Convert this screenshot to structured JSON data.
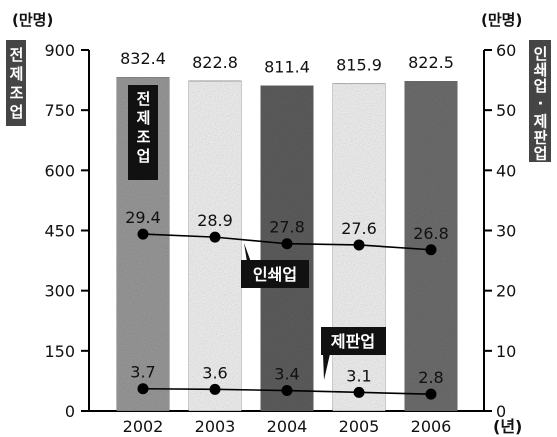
{
  "chart_data": {
    "type": "bar",
    "categories": [
      "2002",
      "2003",
      "2004",
      "2005",
      "2006"
    ],
    "x_unit": "(년)",
    "left_axis": {
      "unit": "(만명)",
      "label": "전제조업",
      "range": [
        0,
        900
      ],
      "ticks": [
        0,
        150,
        300,
        450,
        600,
        750,
        900
      ]
    },
    "right_axis": {
      "unit": "(만명)",
      "label": "인쇄업 · 제판업",
      "range": [
        0,
        60
      ],
      "ticks": [
        0,
        10,
        20,
        30,
        40,
        50,
        60
      ]
    },
    "series": [
      {
        "name": "전제조업",
        "kind": "bar",
        "axis": "left",
        "values": [
          832.4,
          822.8,
          811.4,
          815.9,
          822.5
        ],
        "labels": [
          "832.4",
          "822.8",
          "811.4",
          "815.9",
          "822.5"
        ]
      },
      {
        "name": "인쇄업",
        "kind": "line",
        "axis": "right",
        "values": [
          29.4,
          28.9,
          27.8,
          27.6,
          26.8
        ],
        "labels": [
          "29.4",
          "28.9",
          "27.8",
          "27.6",
          "26.8"
        ]
      },
      {
        "name": "제판업",
        "kind": "line",
        "axis": "right",
        "values": [
          3.7,
          3.6,
          3.4,
          3.1,
          2.8
        ],
        "labels": [
          "3.7",
          "3.6",
          "3.4",
          "3.1",
          "2.8"
        ]
      }
    ],
    "bar_colors": [
      "#9a9a9a",
      "#f2f2f2",
      "#5e5e5e",
      "#f2f2f2",
      "#6e6e6e"
    ],
    "grid": false
  }
}
